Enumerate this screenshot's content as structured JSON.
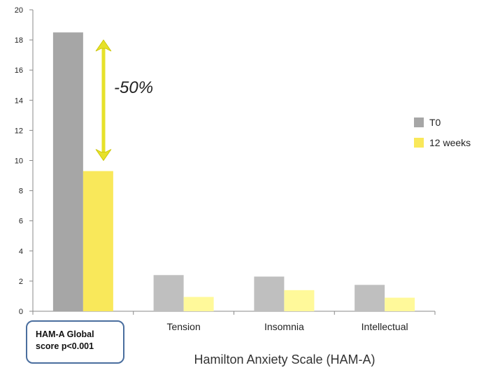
{
  "chart_data": {
    "type": "bar",
    "categories": [
      "",
      "Tension",
      "Insomnia",
      "Intellectual"
    ],
    "series": [
      {
        "name": "T0",
        "values": [
          18.5,
          2.4,
          2.3,
          1.75
        ],
        "colors": [
          "#a6a6a6",
          "#bfbfbf",
          "#bfbfbf",
          "#bfbfbf"
        ]
      },
      {
        "name": "12 weeks",
        "values": [
          9.3,
          0.95,
          1.4,
          0.9
        ],
        "colors": [
          "#f9e85a",
          "#fff99a",
          "#fff99a",
          "#fff99a"
        ]
      }
    ],
    "legend_colors": [
      "#a6a6a6",
      "#f9e85a"
    ],
    "xlabel": "Hamilton Anxiety Scale (HAM-A)",
    "ylabel": "",
    "ylim": [
      0,
      20
    ],
    "yticks": [
      0,
      2,
      4,
      6,
      8,
      10,
      12,
      14,
      16,
      18,
      20
    ],
    "grid": false,
    "legend": "right",
    "annotation": {
      "text": "-50%",
      "arrow_from": 18.0,
      "arrow_to": 10.0,
      "arrow_color": "#e6e12a"
    }
  },
  "note_box": {
    "line1": "HAM-A Global",
    "line2": "score p<0.001"
  }
}
